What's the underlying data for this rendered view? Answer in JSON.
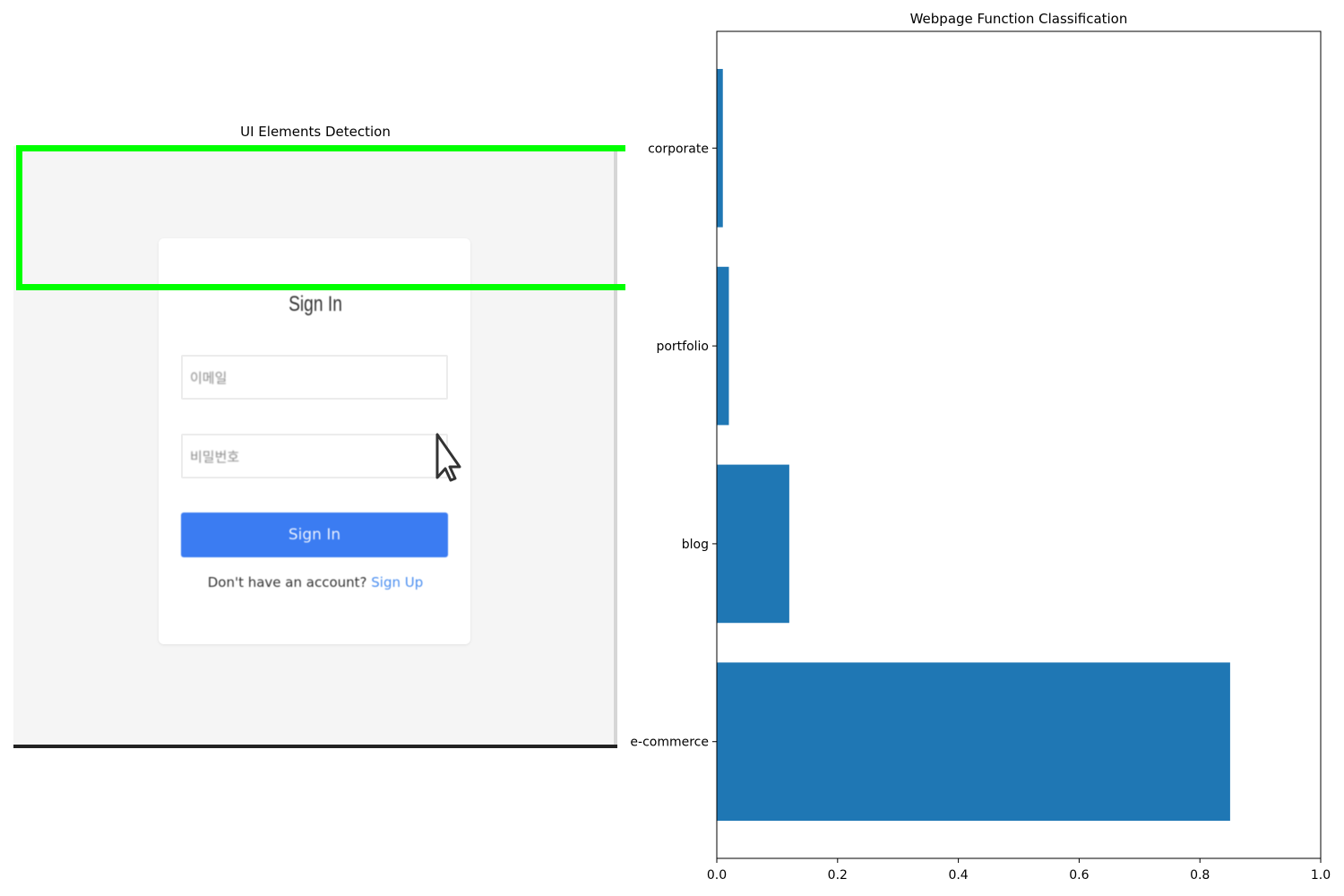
{
  "left_panel": {
    "title": "UI Elements Detection",
    "screenshot": {
      "heading": "Sign In",
      "username_placeholder": "이메일",
      "password_placeholder": "비밀번호",
      "signin_button": "Sign In",
      "signup_prompt": "Don't have an account?",
      "signup_link": "Sign Up"
    },
    "detection_box_color": "#00ff00"
  },
  "chart_data": {
    "type": "bar",
    "orientation": "horizontal",
    "title": "Webpage Function Classification",
    "categories": [
      "e-commerce",
      "blog",
      "portfolio",
      "corporate"
    ],
    "values": [
      0.85,
      0.12,
      0.02,
      0.01
    ],
    "xlim": [
      0,
      1.0
    ],
    "xticks": [
      "0.0",
      "0.2",
      "0.4",
      "0.6",
      "0.8",
      "1.0"
    ],
    "xlabel": "",
    "ylabel": "",
    "grid": false,
    "bar_color": "#1f77b4"
  }
}
